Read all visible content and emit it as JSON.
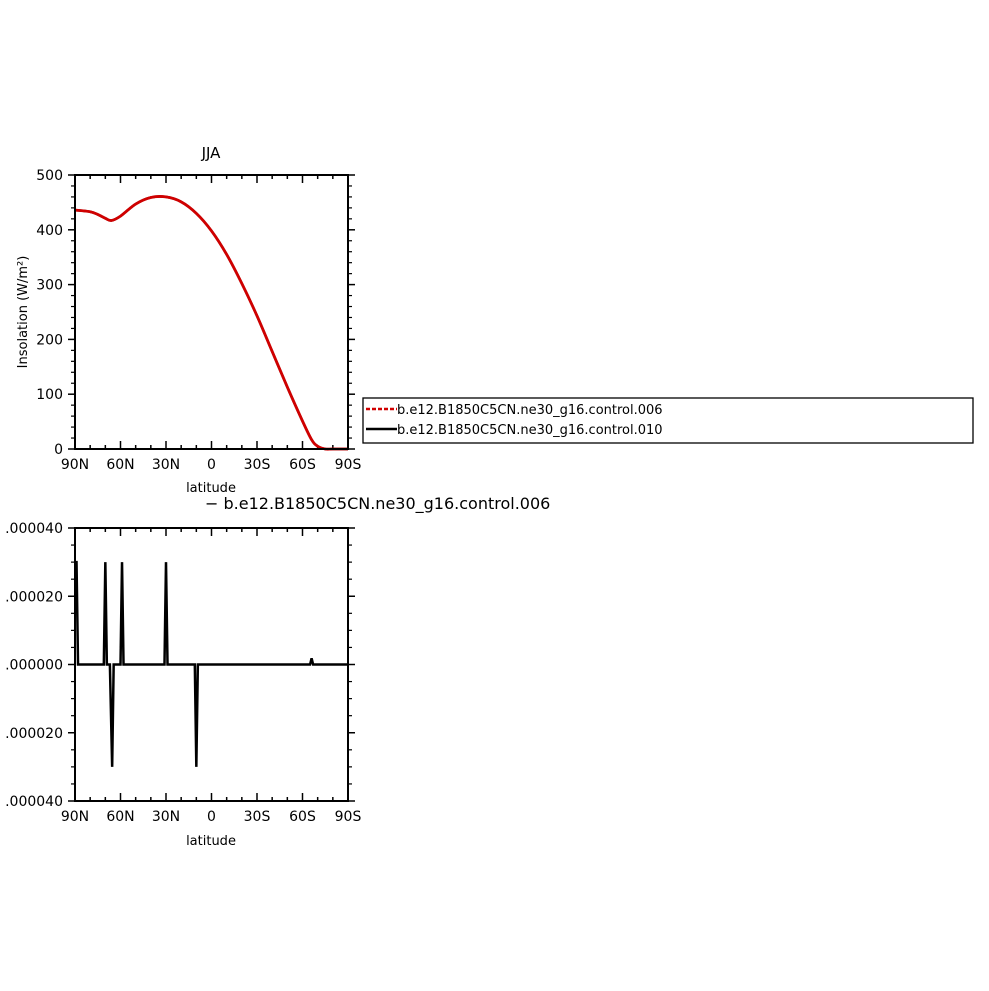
{
  "chart_data": [
    {
      "type": "line",
      "title": "JJA",
      "xlabel": "latitude",
      "ylabel": "Insolation (W/m²)",
      "xlim": [
        90,
        -90
      ],
      "ylim": [
        0,
        500
      ],
      "x_tick_labels": [
        "90N",
        "60N",
        "30N",
        "0",
        "30S",
        "60S",
        "90S"
      ],
      "y_tick_labels": [
        "0",
        "100",
        "200",
        "300",
        "400",
        "500"
      ],
      "x": [
        90,
        80,
        75,
        70,
        66,
        60,
        50,
        40,
        30,
        20,
        10,
        0,
        -10,
        -20,
        -30,
        -40,
        -50,
        -60,
        -66,
        -70,
        -75,
        -80,
        -90
      ],
      "series": [
        {
          "name": "b.e12.B1850C5CN.ne30_g16.control.006",
          "color": "#d00000",
          "dash": "dashed",
          "values": [
            436,
            433,
            428,
            421,
            417,
            425,
            447,
            459,
            460,
            451,
            430,
            398,
            355,
            302,
            243,
            178,
            113,
            51,
            17,
            5,
            0,
            0,
            0
          ]
        },
        {
          "name": "b.e12.B1850C5CN.ne30_g16.control.010",
          "color": "#000000",
          "dash": "solid",
          "values": [
            436,
            433,
            428,
            421,
            417,
            425,
            447,
            459,
            460,
            451,
            430,
            398,
            355,
            302,
            243,
            178,
            113,
            51,
            17,
            5,
            0,
            0,
            0
          ]
        }
      ],
      "legend": {
        "entries": [
          "b.e12.B1850C5CN.ne30_g16.control.006",
          "b.e12.B1850C5CN.ne30_g16.control.010"
        ],
        "placement": "right"
      }
    },
    {
      "type": "line",
      "title": "− b.e12.B1850C5CN.ne30_g16.control.006",
      "xlabel": "latitude",
      "xlim": [
        90,
        -90
      ],
      "ylim": [
        -4e-05,
        4e-05
      ],
      "x_tick_labels": [
        "90N",
        "60N",
        "30N",
        "0",
        "30S",
        "60S",
        "90S"
      ],
      "y_tick_labels": [
        ".000040",
        ".000020",
        ".000000",
        ".000020",
        ".000040"
      ],
      "series": [
        {
          "color": "#000000",
          "points": [
            [
              90,
              3e-05
            ],
            [
              89,
              3e-05
            ],
            [
              88,
              0
            ],
            [
              71,
              0
            ],
            [
              70,
              3e-05
            ],
            [
              69,
              0
            ],
            [
              67,
              0
            ],
            [
              65.5,
              -3e-05
            ],
            [
              64.5,
              0
            ],
            [
              60,
              0
            ],
            [
              59,
              3e-05
            ],
            [
              58,
              0
            ],
            [
              31,
              0
            ],
            [
              30,
              3e-05
            ],
            [
              29,
              0
            ],
            [
              11,
              0
            ],
            [
              10,
              -3e-05
            ],
            [
              9,
              0
            ],
            [
              -65,
              0
            ],
            [
              -66,
              1.8e-06
            ],
            [
              -67,
              0
            ],
            [
              -90,
              0
            ]
          ]
        }
      ]
    }
  ]
}
